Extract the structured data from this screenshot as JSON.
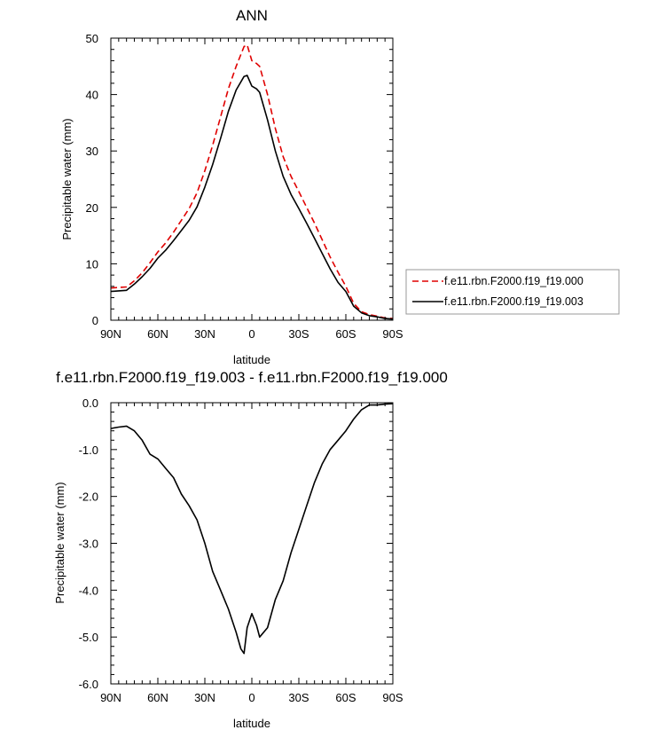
{
  "chart_data": [
    {
      "type": "line",
      "title": "ANN",
      "xlabel": "latitude",
      "ylabel": "Precipitable water (mm)",
      "xlim": [
        90,
        -90
      ],
      "ylim": [
        0,
        50
      ],
      "xticks": [
        {
          "value": 90,
          "label": "90N"
        },
        {
          "value": 60,
          "label": "60N"
        },
        {
          "value": 30,
          "label": "30N"
        },
        {
          "value": 0,
          "label": "0"
        },
        {
          "value": -30,
          "label": "30S"
        },
        {
          "value": -60,
          "label": "60S"
        },
        {
          "value": -90,
          "label": "90S"
        }
      ],
      "yticks": [
        {
          "value": 0,
          "label": "0"
        },
        {
          "value": 10,
          "label": "10"
        },
        {
          "value": 20,
          "label": "20"
        },
        {
          "value": 30,
          "label": "30"
        },
        {
          "value": 40,
          "label": "40"
        },
        {
          "value": 50,
          "label": "50"
        }
      ],
      "legend_position": "right",
      "x": [
        90,
        85,
        80,
        75,
        70,
        65,
        60,
        55,
        50,
        45,
        40,
        35,
        30,
        25,
        20,
        15,
        10,
        5,
        3,
        0,
        -3,
        -5,
        -10,
        -15,
        -20,
        -25,
        -30,
        -35,
        -40,
        -45,
        -50,
        -55,
        -60,
        -65,
        -70,
        -75,
        -80,
        -85,
        -90
      ],
      "series": [
        {
          "name": "f.e11.rbn.F2000.f19_f19.000",
          "color": "#e00000",
          "dash": "dashed",
          "values": [
            5.7,
            5.8,
            5.9,
            7.0,
            8.4,
            10.2,
            12.1,
            13.7,
            15.6,
            17.7,
            19.8,
            22.6,
            26.5,
            31.0,
            36.0,
            41.0,
            45.0,
            48.5,
            48.8,
            46.0,
            45.5,
            45.0,
            40.0,
            34.0,
            29.0,
            25.5,
            22.8,
            20.0,
            17.2,
            14.2,
            11.2,
            8.5,
            6.0,
            3.0,
            1.5,
            1.0,
            0.7,
            0.4,
            0.3
          ]
        },
        {
          "name": "f.e11.rbn.F2000.f19_f19.003",
          "color": "#000000",
          "dash": "solid",
          "values": [
            5.1,
            5.2,
            5.3,
            6.4,
            7.7,
            9.2,
            11.0,
            12.4,
            14.1,
            15.9,
            17.7,
            20.1,
            23.6,
            27.6,
            32.2,
            37.0,
            40.8,
            43.2,
            43.4,
            41.5,
            41.0,
            40.4,
            35.5,
            30.0,
            25.5,
            22.3,
            19.8,
            17.2,
            14.5,
            11.8,
            9.1,
            6.7,
            5.1,
            2.5,
            1.3,
            0.8,
            0.6,
            0.3,
            0.2
          ]
        }
      ]
    },
    {
      "type": "line",
      "title": "f.e11.rbn.F2000.f19_f19.003 - f.e11.rbn.F2000.f19_f19.000",
      "xlabel": "latitude",
      "ylabel": "Precipitable water (mm)",
      "xlim": [
        90,
        -90
      ],
      "ylim": [
        -6,
        0
      ],
      "xticks": [
        {
          "value": 90,
          "label": "90N"
        },
        {
          "value": 60,
          "label": "60N"
        },
        {
          "value": 30,
          "label": "30N"
        },
        {
          "value": 0,
          "label": "0"
        },
        {
          "value": -30,
          "label": "30S"
        },
        {
          "value": -60,
          "label": "60S"
        },
        {
          "value": -90,
          "label": "90S"
        }
      ],
      "yticks": [
        {
          "value": 0,
          "label": "0.0"
        },
        {
          "value": -1,
          "label": "-1.0"
        },
        {
          "value": -2,
          "label": "-2.0"
        },
        {
          "value": -3,
          "label": "-3.0"
        },
        {
          "value": -4,
          "label": "-4.0"
        },
        {
          "value": -5,
          "label": "-5.0"
        },
        {
          "value": -6,
          "label": "-6.0"
        }
      ],
      "x": [
        90,
        85,
        80,
        75,
        70,
        65,
        60,
        55,
        50,
        45,
        40,
        35,
        30,
        25,
        20,
        15,
        10,
        7,
        5,
        3,
        0,
        -3,
        -5,
        -10,
        -15,
        -20,
        -25,
        -30,
        -35,
        -40,
        -45,
        -50,
        -55,
        -60,
        -65,
        -70,
        -75,
        -80,
        -85,
        -90
      ],
      "series": [
        {
          "color": "#000000",
          "dash": "solid",
          "values": [
            -0.55,
            -0.52,
            -0.5,
            -0.6,
            -0.8,
            -1.1,
            -1.2,
            -1.4,
            -1.6,
            -1.95,
            -2.2,
            -2.5,
            -3.0,
            -3.6,
            -4.0,
            -4.4,
            -4.9,
            -5.25,
            -5.35,
            -4.8,
            -4.5,
            -4.75,
            -5.0,
            -4.8,
            -4.2,
            -3.8,
            -3.2,
            -2.7,
            -2.2,
            -1.7,
            -1.3,
            -1.0,
            -0.8,
            -0.6,
            -0.35,
            -0.15,
            -0.05,
            -0.05,
            -0.03,
            -0.02
          ]
        }
      ]
    }
  ]
}
